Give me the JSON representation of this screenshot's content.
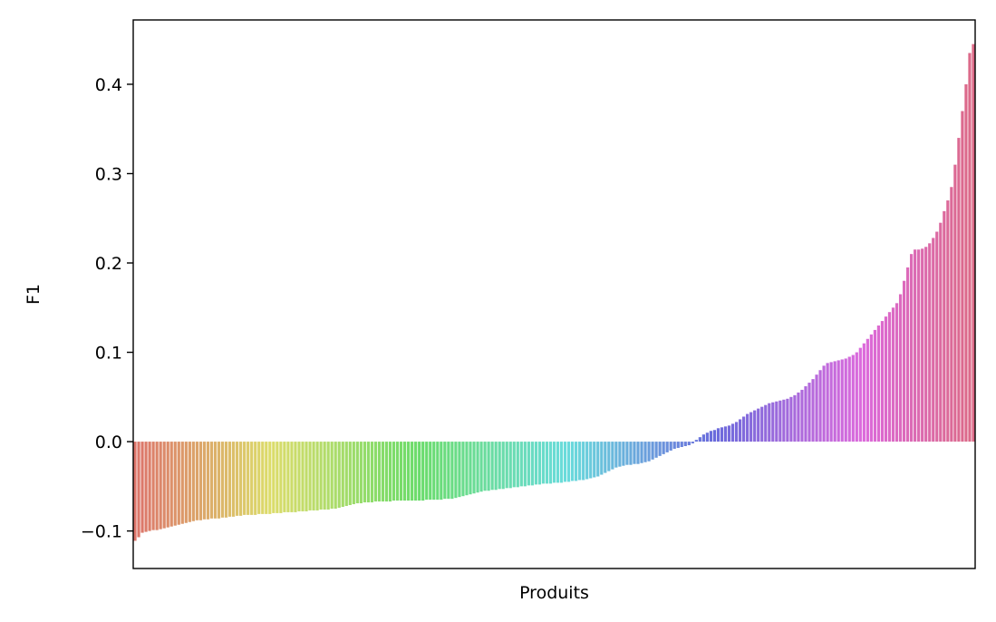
{
  "chart_data": {
    "type": "bar",
    "xlabel": "Produits",
    "ylabel": "F1",
    "ylim": [
      -0.142,
      0.472
    ],
    "yticks": [
      -0.1,
      0.0,
      0.1,
      0.2,
      0.3,
      0.4
    ],
    "ytick_labels": [
      "−0.1",
      "0.0",
      "0.1",
      "0.2",
      "0.3",
      "0.4"
    ],
    "xticks_shown": false,
    "grid": false,
    "legend": "none",
    "palette": "husl (hue gradient left to right)",
    "values": [
      -0.111,
      -0.107,
      -0.102,
      -0.101,
      -0.1,
      -0.099,
      -0.099,
      -0.098,
      -0.097,
      -0.096,
      -0.095,
      -0.094,
      -0.093,
      -0.092,
      -0.091,
      -0.09,
      -0.089,
      -0.088,
      -0.088,
      -0.087,
      -0.087,
      -0.086,
      -0.086,
      -0.086,
      -0.085,
      -0.085,
      -0.084,
      -0.084,
      -0.083,
      -0.083,
      -0.082,
      -0.082,
      -0.082,
      -0.082,
      -0.081,
      -0.081,
      -0.081,
      -0.081,
      -0.08,
      -0.08,
      -0.08,
      -0.079,
      -0.079,
      -0.079,
      -0.079,
      -0.078,
      -0.078,
      -0.078,
      -0.077,
      -0.077,
      -0.077,
      -0.076,
      -0.076,
      -0.076,
      -0.075,
      -0.075,
      -0.074,
      -0.073,
      -0.072,
      -0.071,
      -0.07,
      -0.069,
      -0.069,
      -0.068,
      -0.068,
      -0.068,
      -0.067,
      -0.067,
      -0.067,
      -0.067,
      -0.067,
      -0.066,
      -0.066,
      -0.066,
      -0.066,
      -0.066,
      -0.066,
      -0.066,
      -0.066,
      -0.066,
      -0.065,
      -0.065,
      -0.065,
      -0.065,
      -0.065,
      -0.064,
      -0.064,
      -0.064,
      -0.063,
      -0.062,
      -0.061,
      -0.06,
      -0.059,
      -0.058,
      -0.057,
      -0.056,
      -0.055,
      -0.055,
      -0.054,
      -0.054,
      -0.053,
      -0.053,
      -0.052,
      -0.052,
      -0.051,
      -0.051,
      -0.05,
      -0.05,
      -0.049,
      -0.049,
      -0.048,
      -0.048,
      -0.047,
      -0.047,
      -0.047,
      -0.046,
      -0.046,
      -0.046,
      -0.045,
      -0.045,
      -0.044,
      -0.044,
      -0.043,
      -0.043,
      -0.042,
      -0.041,
      -0.04,
      -0.039,
      -0.037,
      -0.035,
      -0.033,
      -0.031,
      -0.029,
      -0.028,
      -0.027,
      -0.026,
      -0.026,
      -0.025,
      -0.025,
      -0.024,
      -0.023,
      -0.022,
      -0.02,
      -0.018,
      -0.016,
      -0.014,
      -0.012,
      -0.01,
      -0.008,
      -0.007,
      -0.006,
      -0.005,
      -0.004,
      -0.002,
      0.002,
      0.005,
      0.008,
      0.01,
      0.012,
      0.013,
      0.015,
      0.016,
      0.017,
      0.018,
      0.02,
      0.022,
      0.025,
      0.028,
      0.031,
      0.033,
      0.035,
      0.037,
      0.039,
      0.041,
      0.043,
      0.044,
      0.045,
      0.046,
      0.047,
      0.048,
      0.05,
      0.052,
      0.055,
      0.058,
      0.062,
      0.066,
      0.07,
      0.075,
      0.08,
      0.085,
      0.088,
      0.089,
      0.09,
      0.091,
      0.092,
      0.093,
      0.095,
      0.097,
      0.1,
      0.105,
      0.11,
      0.115,
      0.12,
      0.125,
      0.13,
      0.135,
      0.14,
      0.145,
      0.15,
      0.155,
      0.165,
      0.18,
      0.195,
      0.21,
      0.215,
      0.215,
      0.216,
      0.218,
      0.222,
      0.228,
      0.235,
      0.245,
      0.258,
      0.27,
      0.285,
      0.31,
      0.34,
      0.37,
      0.4,
      0.435,
      0.445
    ]
  }
}
